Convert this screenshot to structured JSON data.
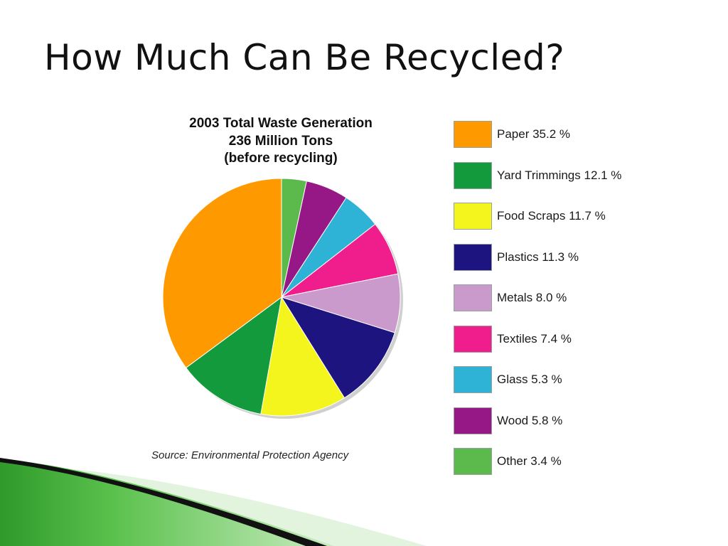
{
  "slide": {
    "title": "How Much Can Be Recycled?"
  },
  "chart_data": {
    "type": "pie",
    "title_lines": [
      "2003 Total Waste Generation",
      "236 Million Tons",
      "(before recycling)"
    ],
    "source": "Source: Environmental Protection Agency",
    "legend_position": "right",
    "slices": [
      {
        "name": "Paper",
        "value": 35.2,
        "label": "Paper 35.2 %",
        "color": "#ff9900"
      },
      {
        "name": "Yard Trimmings",
        "value": 12.1,
        "label": "Yard Trimmings 12.1 %",
        "color": "#129a3c"
      },
      {
        "name": "Food Scraps",
        "value": 11.7,
        "label": "Food Scraps 11.7 %",
        "color": "#f5f51e"
      },
      {
        "name": "Plastics",
        "value": 11.3,
        "label": "Plastics 11.3 %",
        "color": "#1e1480"
      },
      {
        "name": "Metals",
        "value": 8.0,
        "label": "Metals 8.0 %",
        "color": "#c99acb"
      },
      {
        "name": "Textiles",
        "value": 7.4,
        "label": "Textiles 7.4 %",
        "color": "#ef1e8c"
      },
      {
        "name": "Glass",
        "value": 5.3,
        "label": "Glass 5.3 %",
        "color": "#2eb3d6"
      },
      {
        "name": "Wood",
        "value": 5.8,
        "label": "Wood 5.8 %",
        "color": "#961887"
      },
      {
        "name": "Other",
        "value": 3.4,
        "label": "Other 3.4 %",
        "color": "#5cba4c"
      }
    ],
    "pie_order_clockwise_from_top": [
      "Other",
      "Wood",
      "Glass",
      "Textiles",
      "Metals",
      "Plastics",
      "Food Scraps",
      "Yard Trimmings",
      "Paper"
    ]
  }
}
